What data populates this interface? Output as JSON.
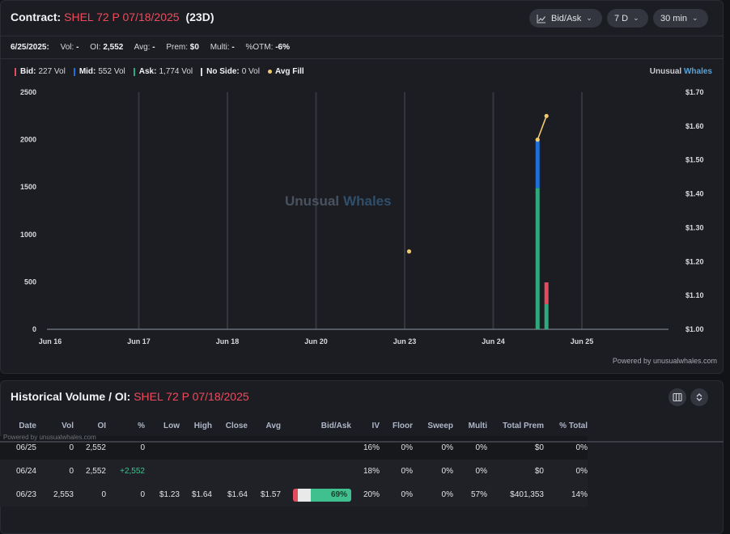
{
  "header": {
    "label": "Contract:",
    "contract": "SHEL 72 P 07/18/2025",
    "days": "(23D)",
    "controls": [
      {
        "label": "Bid/Ask",
        "icon": "line-chart-icon"
      },
      {
        "label": "7 D"
      },
      {
        "label": "30 min"
      }
    ]
  },
  "stats": {
    "date": "6/25/2025:",
    "vol_label": "Vol:",
    "vol": "-",
    "oi_label": "OI:",
    "oi": "2,552",
    "avg_label": "Avg:",
    "avg": "-",
    "prem_label": "Prem:",
    "prem": "$0",
    "multi_label": "Multi:",
    "multi": "-",
    "otm_label": "%OTM:",
    "otm": "-6%"
  },
  "legend": {
    "bid_label": "Bid:",
    "bid": "227 Vol",
    "bid_color": "#e04e5e",
    "mid_label": "Mid:",
    "mid": "552 Vol",
    "mid_color": "#1e6fd9",
    "ask_label": "Ask:",
    "ask": "1,774 Vol",
    "ask_color": "#2fa97c",
    "noside_label": "No Side:",
    "noside": "0 Vol",
    "avgfill_label": "Avg Fill",
    "avgfill_color": "#f2c86c"
  },
  "brand": {
    "a": "Unusual",
    "b": "Whales"
  },
  "watermark": {
    "a": "Unusual",
    "b": "Whales"
  },
  "powered": "Powered by unusualwhales.com",
  "chart_data": {
    "type": "bar",
    "x_ticks": [
      "Jun 16",
      "Jun 17",
      "Jun 18",
      "Jun 20",
      "Jun 23",
      "Jun 24",
      "Jun 25"
    ],
    "y_ticks_left": [
      "0",
      "500",
      "1000",
      "1500",
      "2000",
      "2500"
    ],
    "y_ticks_right": [
      "$1.00",
      "$1.10",
      "$1.20",
      "$1.30",
      "$1.40",
      "$1.50",
      "$1.60",
      "$1.70"
    ],
    "ylim_left": [
      0,
      2500
    ],
    "ylim_right": [
      1.0,
      1.7
    ],
    "grid": true,
    "bars": [
      {
        "x": 5.5,
        "ask": 1490,
        "mid": 505,
        "bid": 0
      },
      {
        "x": 5.6,
        "ask": 265,
        "mid": 0,
        "bid": 230
      }
    ],
    "avg_fill": [
      {
        "x": 4.05,
        "y": 1.23
      },
      {
        "x": 5.5,
        "y": 1.56
      },
      {
        "x": 5.6,
        "y": 1.63
      }
    ]
  },
  "history": {
    "title": "Historical Volume / OI:",
    "contract": "SHEL 72 P 07/18/2025",
    "watermark": "Powered by unusualwhales.com",
    "columns": [
      "Date",
      "Vol",
      "OI",
      "%",
      "Low",
      "High",
      "Close",
      "Avg",
      "Bid/Ask",
      "IV",
      "Floor",
      "Sweep",
      "Multi",
      "Total Prem",
      "% Total"
    ],
    "rows": [
      {
        "date": "06/25",
        "vol": "0",
        "oi": "2,552",
        "chg": "0",
        "low": "",
        "high": "",
        "close": "",
        "avg": "",
        "bidask": null,
        "iv": "16%",
        "floor": "0%",
        "sweep": "0%",
        "multi": "0%",
        "prem": "$0",
        "total": "0%"
      },
      {
        "date": "06/24",
        "vol": "0",
        "oi": "2,552",
        "chg": "+2,552",
        "low": "",
        "high": "",
        "close": "",
        "avg": "",
        "bidask": null,
        "iv": "18%",
        "floor": "0%",
        "sweep": "0%",
        "multi": "0%",
        "prem": "$0",
        "total": "0%"
      },
      {
        "date": "06/23",
        "vol": "2,553",
        "oi": "0",
        "chg": "0",
        "low": "$1.23",
        "high": "$1.64",
        "close": "$1.64",
        "avg": "$1.57",
        "bidask": {
          "bid": 0.09,
          "mid": 0.22,
          "ask": 0.69,
          "label": "69%"
        },
        "iv": "20%",
        "floor": "0%",
        "sweep": "0%",
        "multi": "57%",
        "prem": "$401,353",
        "total": "14%"
      }
    ]
  }
}
